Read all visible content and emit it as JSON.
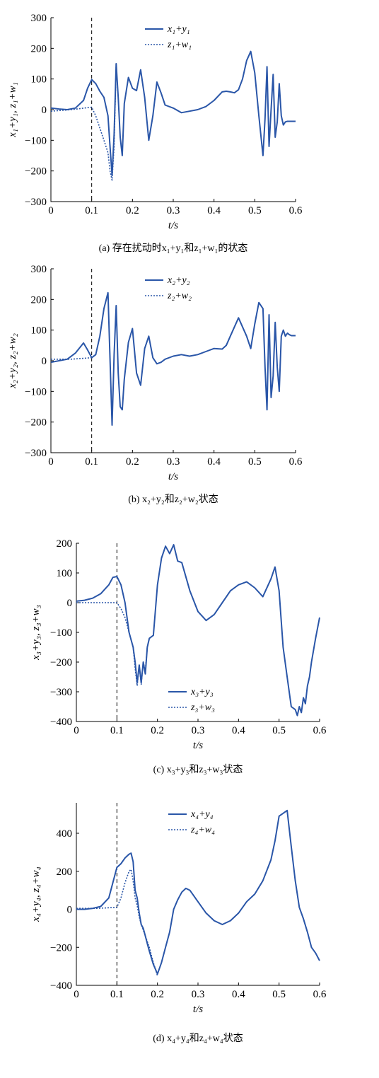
{
  "colors": {
    "series_solid": "#2a56a8",
    "series_dotted": "#2a56a8",
    "vline": "#000000"
  },
  "chart_data": [
    {
      "type": "line",
      "caption": "(a) 存在扰动时x₁+y₁和z₁+w₁的状态",
      "xlabel": "t/s",
      "ylabel": "x₁+y₁, z₁+w₁",
      "xlim": [
        0,
        0.6
      ],
      "ylim": [
        -300,
        300
      ],
      "xticks": [
        "0",
        "0.1",
        "0.2",
        "0.3",
        "0.4",
        "0.5",
        "0.6"
      ],
      "yticks": [
        "−300",
        "−200",
        "−100",
        "0",
        "100",
        "200",
        "300"
      ],
      "vline_x": 0.1,
      "legend_position": "top-center",
      "series": [
        {
          "name": "x₁+y₁",
          "style": "solid",
          "x": [
            0,
            0.02,
            0.04,
            0.06,
            0.08,
            0.09,
            0.1,
            0.11,
            0.12,
            0.13,
            0.14,
            0.145,
            0.15,
            0.155,
            0.16,
            0.165,
            0.17,
            0.175,
            0.18,
            0.19,
            0.2,
            0.21,
            0.22,
            0.23,
            0.24,
            0.25,
            0.26,
            0.27,
            0.28,
            0.3,
            0.32,
            0.34,
            0.36,
            0.38,
            0.4,
            0.42,
            0.43,
            0.44,
            0.45,
            0.46,
            0.47,
            0.48,
            0.49,
            0.5,
            0.51,
            0.52,
            0.525,
            0.53,
            0.535,
            0.54,
            0.545,
            0.55,
            0.555,
            0.56,
            0.565,
            0.57,
            0.575,
            0.58,
            0.585,
            0.59,
            0.6
          ],
          "y": [
            5,
            2,
            0,
            5,
            30,
            70,
            98,
            85,
            60,
            40,
            -20,
            -120,
            -215,
            -80,
            150,
            40,
            -90,
            -150,
            20,
            105,
            70,
            62,
            130,
            40,
            -100,
            -20,
            90,
            55,
            15,
            5,
            -10,
            -5,
            0,
            10,
            30,
            58,
            60,
            58,
            55,
            65,
            100,
            160,
            190,
            120,
            -20,
            -150,
            -30,
            140,
            -120,
            0,
            115,
            -90,
            -40,
            85,
            -20,
            -50,
            -40,
            -38,
            -38,
            -38,
            -38
          ]
        },
        {
          "name": "z₁+w₁",
          "style": "dotted",
          "x": [
            0,
            0.05,
            0.1,
            0.11,
            0.12,
            0.13,
            0.14,
            0.145,
            0.15,
            0.155,
            0.16
          ],
          "y": [
            -5,
            0,
            8,
            -20,
            -60,
            -100,
            -140,
            -200,
            -230,
            -120,
            150
          ]
        }
      ]
    },
    {
      "type": "line",
      "caption": "(b) x₂+y₂和z₂+w₂状态",
      "xlabel": "t/s",
      "ylabel": "x₂+y₂, z₂+w₂",
      "xlim": [
        0,
        0.6
      ],
      "ylim": [
        -300,
        300
      ],
      "xticks": [
        "0",
        "0.1",
        "0.2",
        "0.3",
        "0.4",
        "0.5",
        "0.6"
      ],
      "yticks": [
        "−300",
        "−200",
        "−100",
        "0",
        "100",
        "200",
        "300"
      ],
      "vline_x": 0.1,
      "legend_position": "top-center",
      "series": [
        {
          "name": "x₂+y₂",
          "style": "solid",
          "x": [
            0,
            0.02,
            0.04,
            0.06,
            0.08,
            0.09,
            0.1,
            0.11,
            0.12,
            0.13,
            0.14,
            0.15,
            0.155,
            0.16,
            0.165,
            0.17,
            0.175,
            0.18,
            0.19,
            0.2,
            0.21,
            0.22,
            0.23,
            0.24,
            0.25,
            0.26,
            0.27,
            0.28,
            0.3,
            0.32,
            0.34,
            0.36,
            0.38,
            0.4,
            0.42,
            0.43,
            0.44,
            0.46,
            0.48,
            0.49,
            0.5,
            0.51,
            0.52,
            0.525,
            0.53,
            0.535,
            0.54,
            0.545,
            0.55,
            0.555,
            0.56,
            0.565,
            0.57,
            0.575,
            0.58,
            0.585,
            0.59,
            0.6
          ],
          "y": [
            -5,
            0,
            5,
            25,
            58,
            35,
            10,
            20,
            80,
            170,
            222,
            -210,
            20,
            180,
            -40,
            -150,
            -160,
            -60,
            60,
            105,
            -40,
            -80,
            40,
            80,
            10,
            -10,
            -5,
            5,
            15,
            20,
            15,
            20,
            30,
            40,
            38,
            50,
            80,
            140,
            80,
            40,
            120,
            190,
            170,
            -20,
            -160,
            150,
            -120,
            -50,
            125,
            -20,
            -100,
            80,
            100,
            80,
            90,
            85,
            82,
            82
          ]
        },
        {
          "name": "z₂+w₂",
          "style": "dotted",
          "x": [
            0,
            0.05,
            0.1,
            0.11
          ],
          "y": [
            5,
            5,
            10,
            20
          ]
        }
      ]
    },
    {
      "type": "line",
      "caption": "(c) x₃+y₃和z₃+w₃状态",
      "xlabel": "t/s",
      "ylabel": "x₃+y₃, z₃+w₃",
      "xlim": [
        0,
        0.6
      ],
      "ylim": [
        -400,
        200
      ],
      "xticks": [
        "0",
        "0.1",
        "0.2",
        "0.3",
        "0.4",
        "0.5",
        "0.6"
      ],
      "yticks": [
        "−400",
        "−300",
        "−200",
        "−100",
        "0",
        "100",
        "200"
      ],
      "vline_x": 0.1,
      "legend_position": "bottom-center",
      "series": [
        {
          "name": "x₃+y₃",
          "style": "solid",
          "x": [
            0,
            0.02,
            0.04,
            0.06,
            0.08,
            0.09,
            0.1,
            0.11,
            0.12,
            0.13,
            0.14,
            0.145,
            0.15,
            0.155,
            0.16,
            0.165,
            0.17,
            0.175,
            0.18,
            0.19,
            0.2,
            0.21,
            0.22,
            0.23,
            0.24,
            0.25,
            0.26,
            0.28,
            0.3,
            0.32,
            0.34,
            0.36,
            0.38,
            0.4,
            0.42,
            0.44,
            0.46,
            0.48,
            0.49,
            0.5,
            0.51,
            0.52,
            0.53,
            0.54,
            0.545,
            0.55,
            0.555,
            0.56,
            0.565,
            0.57,
            0.575,
            0.58,
            0.59,
            0.6
          ],
          "y": [
            5,
            8,
            15,
            30,
            60,
            85,
            88,
            60,
            0,
            -100,
            -150,
            -200,
            -270,
            -210,
            -270,
            -200,
            -240,
            -150,
            -120,
            -110,
            60,
            150,
            190,
            165,
            195,
            140,
            135,
            40,
            -30,
            -60,
            -40,
            0,
            40,
            60,
            70,
            50,
            20,
            80,
            120,
            40,
            -150,
            -250,
            -350,
            -360,
            -380,
            -350,
            -370,
            -320,
            -340,
            -280,
            -250,
            -200,
            -120,
            -50
          ]
        },
        {
          "name": "z₃+w₃",
          "style": "dotted",
          "x": [
            0,
            0.05,
            0.1,
            0.11,
            0.12,
            0.13,
            0.14,
            0.145,
            0.15,
            0.155,
            0.16,
            0.165,
            0.17,
            0.175,
            0.18
          ],
          "y": [
            0,
            0,
            0,
            -20,
            -50,
            -100,
            -150,
            -220,
            -280,
            -210,
            -275,
            -200,
            -230,
            -150,
            -120
          ]
        }
      ]
    },
    {
      "type": "line",
      "caption": "(d) x₄+y₄和z₄+w₄状态",
      "xlabel": "t/s",
      "ylabel": "x₄+y₄, z₄+w₄",
      "xlim": [
        0,
        0.6
      ],
      "ylim": [
        -400,
        560
      ],
      "xticks": [
        "0",
        "0.1",
        "0.2",
        "0.3",
        "0.4",
        "0.5",
        "0.6"
      ],
      "yticks": [
        "−400",
        "−200",
        "0",
        "200",
        "400"
      ],
      "vline_x": 0.1,
      "legend_position": "top-center",
      "series": [
        {
          "name": "x₄+y₄",
          "style": "solid",
          "x": [
            0,
            0.02,
            0.04,
            0.06,
            0.08,
            0.09,
            0.1,
            0.11,
            0.12,
            0.13,
            0.135,
            0.14,
            0.145,
            0.15,
            0.155,
            0.16,
            0.165,
            0.17,
            0.175,
            0.18,
            0.19,
            0.2,
            0.21,
            0.22,
            0.23,
            0.24,
            0.25,
            0.26,
            0.27,
            0.28,
            0.3,
            0.32,
            0.34,
            0.36,
            0.38,
            0.4,
            0.42,
            0.44,
            0.46,
            0.48,
            0.49,
            0.5,
            0.51,
            0.52,
            0.53,
            0.54,
            0.55,
            0.56,
            0.57,
            0.58,
            0.59,
            0.6
          ],
          "y": [
            0,
            0,
            5,
            15,
            60,
            140,
            220,
            240,
            270,
            290,
            295,
            250,
            100,
            60,
            -20,
            -80,
            -100,
            -140,
            -180,
            -220,
            -290,
            -340,
            -280,
            -200,
            -120,
            0,
            50,
            90,
            110,
            100,
            40,
            -20,
            -60,
            -80,
            -60,
            -20,
            40,
            80,
            150,
            260,
            360,
            490,
            505,
            520,
            330,
            150,
            10,
            -50,
            -120,
            -200,
            -230,
            -270
          ]
        },
        {
          "name": "z₄+w₄",
          "style": "dotted",
          "x": [
            0,
            0.05,
            0.1,
            0.11,
            0.12,
            0.13,
            0.135,
            0.14,
            0.145,
            0.15,
            0.155,
            0.16,
            0.17,
            0.18,
            0.19,
            0.2
          ],
          "y": [
            5,
            5,
            10,
            60,
            140,
            200,
            210,
            150,
            60,
            20,
            -40,
            -80,
            -140,
            -200,
            -280,
            -350
          ]
        }
      ]
    }
  ]
}
